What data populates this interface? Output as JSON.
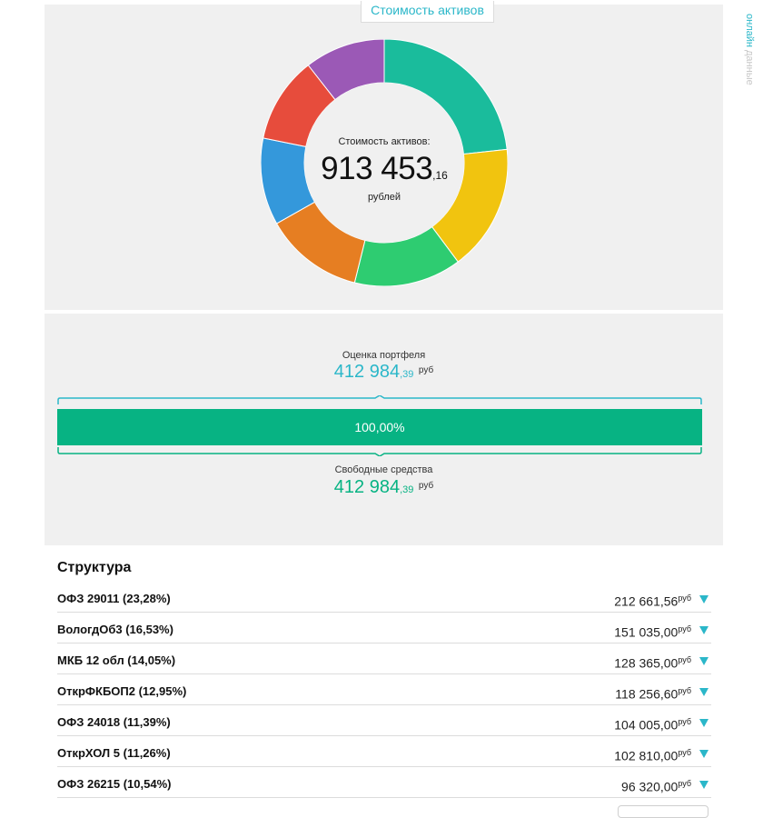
{
  "tab": {
    "label": "Стоимость активов"
  },
  "side_link": {
    "prefix": "данные",
    "link": "онлайн"
  },
  "donut": {
    "label": "Стоимость активов:",
    "value_int": "913 453",
    "value_frac": ",16",
    "unit": "рублей"
  },
  "chart_data": {
    "type": "pie",
    "title": "",
    "categories": [
      "ОФЗ 29011",
      "ВологдОб3",
      "МКБ 12 обл",
      "ОткрФКБОП2",
      "ОФЗ 24018",
      "ОткрХОЛ 5",
      "ОФЗ 26215"
    ],
    "values": [
      23.28,
      16.53,
      14.05,
      12.95,
      11.39,
      11.26,
      10.54
    ],
    "colors": [
      "#1abc9c",
      "#f1c40f",
      "#2ecc71",
      "#e67e22",
      "#3498db",
      "#e74c3c",
      "#9b59b6"
    ]
  },
  "portfolio": {
    "eval_label": "Оценка портфеля",
    "eval_int": "412 984",
    "eval_frac": ",39",
    "eval_unit": "руб",
    "bar_label": "100,00%",
    "bar_fraction": 1.0,
    "free_label": "Свободные средства",
    "free_int": "412 984",
    "free_frac": ",39",
    "free_unit": "руб"
  },
  "structure": {
    "title": "Структура",
    "rows": [
      {
        "name": "ОФЗ 29011 (23,28%)",
        "amount": "212 661,56",
        "unit": "руб"
      },
      {
        "name": "ВологдОб3 (16,53%)",
        "amount": "151 035,00",
        "unit": "руб"
      },
      {
        "name": "МКБ 12 обл (14,05%)",
        "amount": "128 365,00",
        "unit": "руб"
      },
      {
        "name": "ОткрФКБОП2 (12,95%)",
        "amount": "118 256,60",
        "unit": "руб"
      },
      {
        "name": "ОФЗ 24018 (11,39%)",
        "amount": "104 005,00",
        "unit": "руб"
      },
      {
        "name": "ОткрХОЛ 5 (11,26%)",
        "amount": "102 810,00",
        "unit": "руб"
      },
      {
        "name": "ОФЗ 26215 (10,54%)",
        "amount": "96 320,00",
        "unit": "руб"
      }
    ]
  },
  "colors": {
    "accent": "#2bb7c9",
    "bar": "#07b383",
    "panel": "#f0f0f0"
  }
}
